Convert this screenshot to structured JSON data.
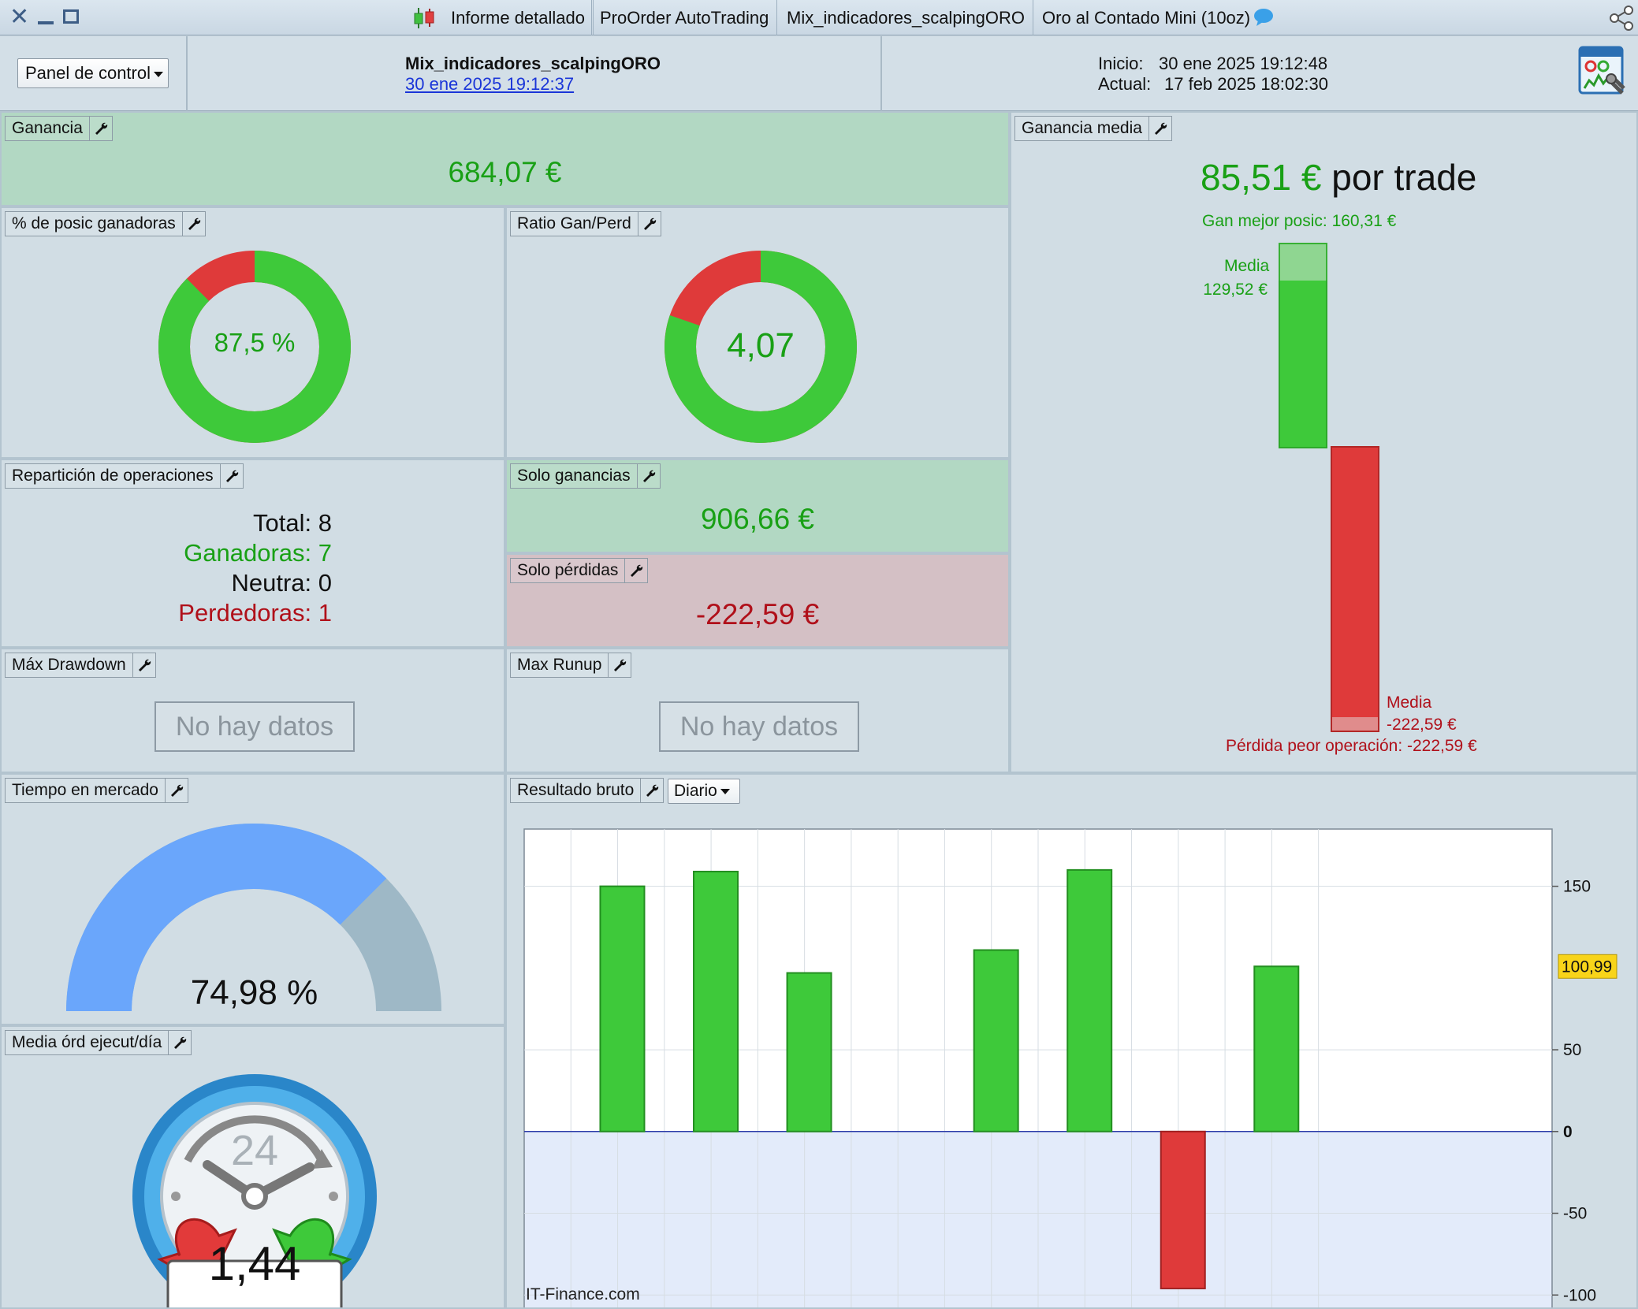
{
  "titlebar": {
    "tabs": [
      {
        "label": "Informe detallado"
      },
      {
        "label": "ProOrder AutoTrading"
      },
      {
        "label": "Mix_indicadores_scalpingORO"
      },
      {
        "label": "Oro al Contado Mini (10oz)"
      }
    ]
  },
  "header": {
    "panel_selector": "Panel de control",
    "strategy_name": "Mix_indicadores_scalpingORO",
    "strategy_date": "30 ene 2025 19:12:37",
    "start_label": "Inicio:",
    "start_value": "30 ene 2025 19:12:48",
    "current_label": "Actual:",
    "current_value": "17 feb 2025 18:02:30"
  },
  "ganancia": {
    "title": "Ganancia",
    "value": "684,07 €"
  },
  "winners": {
    "title": "% de posic ganadoras",
    "value": "87,5 %",
    "fraction": 0.875
  },
  "ratio": {
    "title": "Ratio Gan/Perd",
    "value": "4,07",
    "fraction": 0.8029
  },
  "media": {
    "title": "Ganancia media",
    "value": "85,51 €",
    "suffix": "por trade",
    "best_label": "Gan mejor posic: 160,31 €",
    "avg_win_label": "Media",
    "avg_win_value": "129,52 €",
    "avg_loss_label": "Media",
    "avg_loss_value": "-222,59 €",
    "worst_label": "Pérdida peor operación: -222,59 €"
  },
  "reparticion": {
    "title": "Repartición de operaciones",
    "total": "Total: 8",
    "ganadoras": "Ganadoras: 7",
    "neutra": "Neutra: 0",
    "perdedoras": "Perdedoras: 1"
  },
  "solo_ganancias": {
    "title": "Solo ganancias",
    "value": "906,66 €"
  },
  "solo_perdidas": {
    "title": "Solo pérdidas",
    "value": "-222,59 €"
  },
  "drawdown": {
    "title": "Máx Drawdown",
    "value": "No hay datos"
  },
  "runup": {
    "title": "Max Runup",
    "value": "No hay datos"
  },
  "tiempo": {
    "title": "Tiempo en mercado",
    "value": "74,98 %",
    "fraction": 0.7498
  },
  "ordenes": {
    "title": "Media órd ejecut/día",
    "value": "1,44",
    "clock_label": "24"
  },
  "resultado": {
    "title": "Resultado bruto",
    "period": "Diario",
    "watermark": "IT-Finance.com",
    "last_value_label": "100,99"
  },
  "colors": {
    "green": "#3ec93a",
    "red": "#df3a3a",
    "text_green": "#19a015",
    "text_red": "#b0101a"
  },
  "chart_data": {
    "type": "bar",
    "title": "",
    "xlabel": "",
    "ylabel": "",
    "ylim": [
      -110,
      185
    ],
    "yticks": [
      150,
      50,
      0,
      -50,
      -100
    ],
    "values": [
      150,
      159,
      97,
      null,
      111,
      160,
      -96,
      101
    ],
    "last_value": 100.99,
    "grid": true
  }
}
